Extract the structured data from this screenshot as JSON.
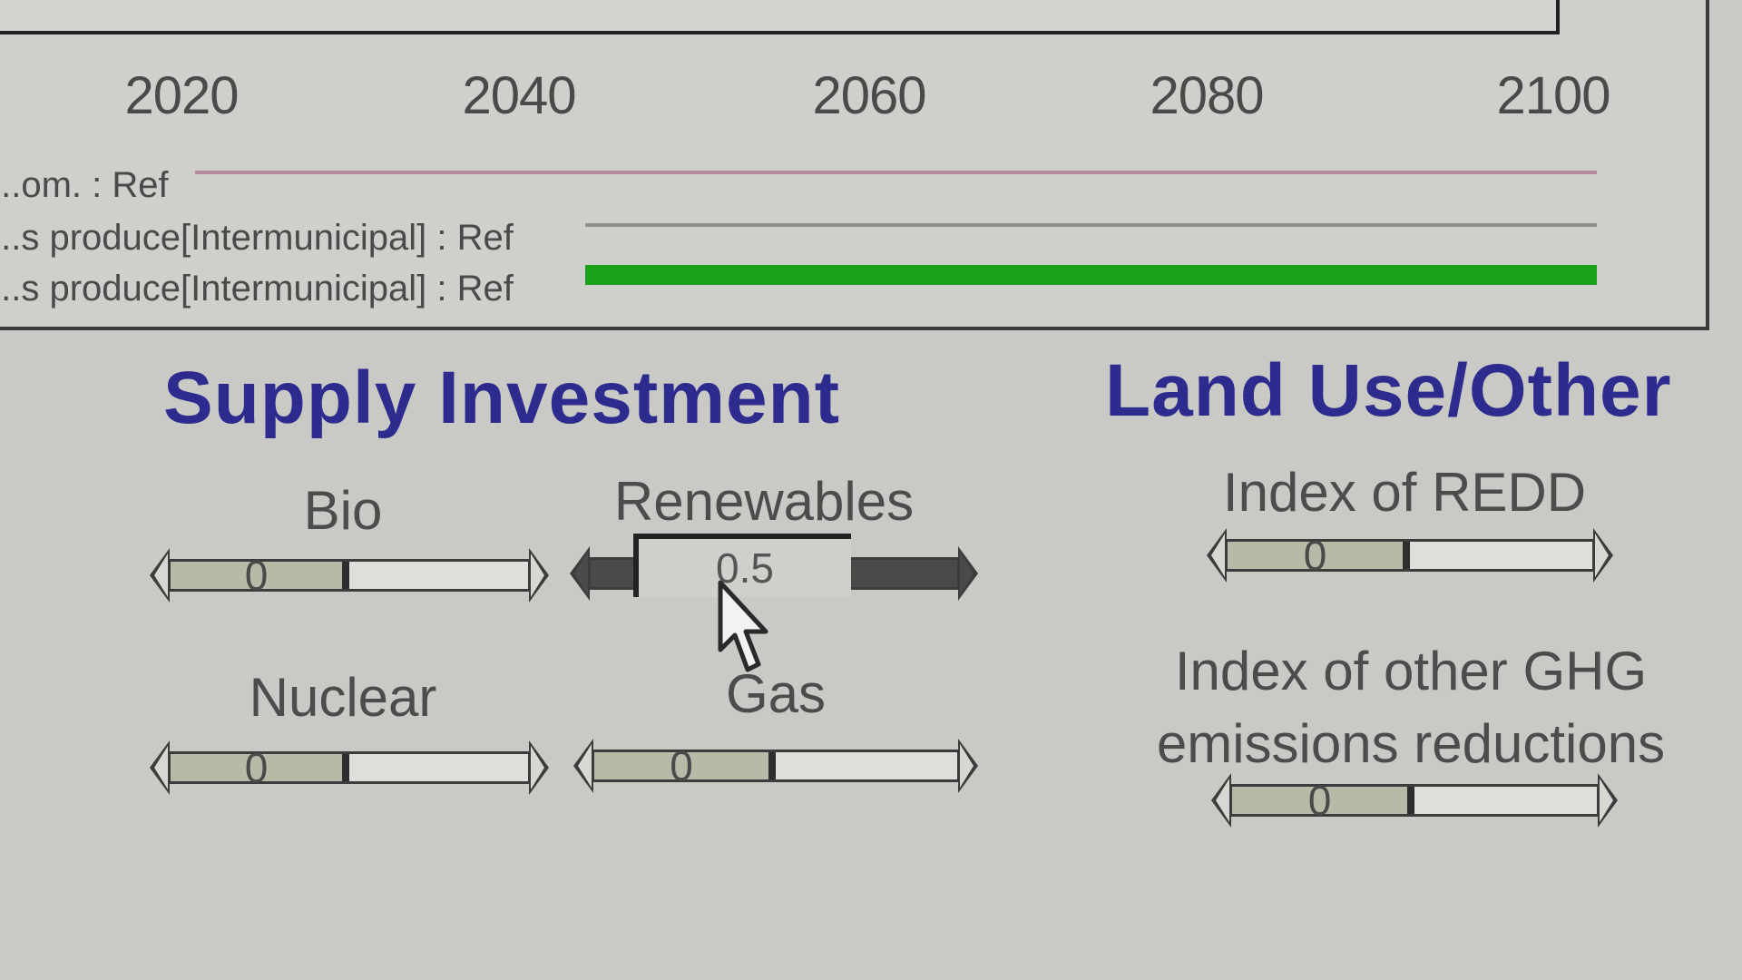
{
  "graph": {
    "x_ticks": [
      "2020",
      "2040",
      "2060",
      "2080",
      "2100"
    ],
    "legend": [
      {
        "label": "...om. : Ref",
        "color": "#b58a9e",
        "thickness": "thin"
      },
      {
        "label": "...s produce[Intermunicipal] : Ref",
        "color": "#8f8f8f",
        "thickness": "thin"
      },
      {
        "label": "...s produce[Intermunicipal] : Ref",
        "color": "#1aa01a",
        "thickness": "thick"
      }
    ]
  },
  "supply_investment": {
    "title": "Supply Investment",
    "controls": [
      {
        "label": "Bio",
        "value": "0",
        "level": 0.5
      },
      {
        "label": "Renewables",
        "value": "0.5",
        "level": 1.0
      },
      {
        "label": "Nuclear",
        "value": "0",
        "level": 0.5
      },
      {
        "label": "Gas",
        "value": "0",
        "level": 0.5
      }
    ]
  },
  "land_use": {
    "title": "Land Use/Other",
    "controls": [
      {
        "label": "Index of REDD",
        "value": "0",
        "level": 0.5
      },
      {
        "label": "Index of other GHG emissions reductions",
        "value": "0",
        "level": 0.5
      }
    ]
  },
  "colors": {
    "heading": "#2d2b8e",
    "background": "#c9cac6",
    "series_highlight": "#1aa01a"
  }
}
